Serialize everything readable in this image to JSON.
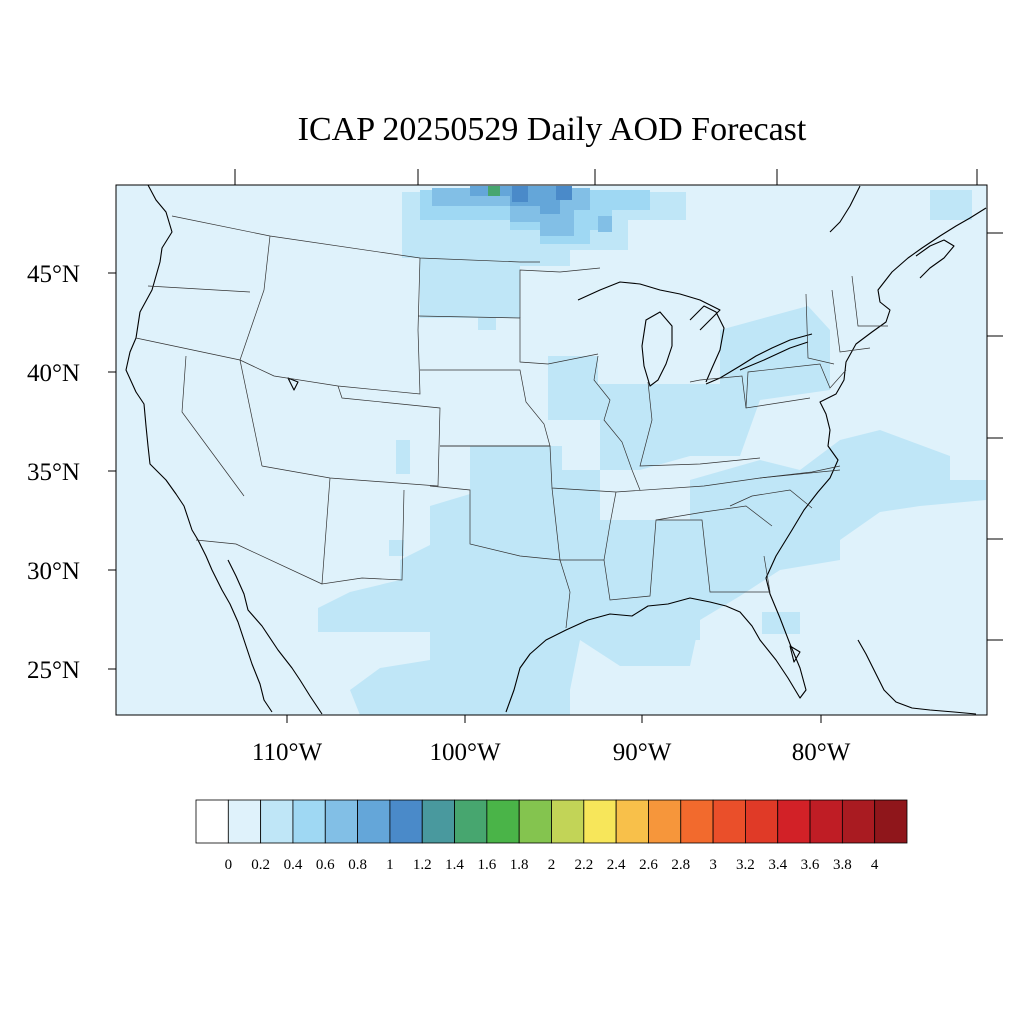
{
  "title": "ICAP 20250529 Daily AOD Forecast",
  "map": {
    "lat_labels": [
      "45°N",
      "40°N",
      "35°N",
      "30°N",
      "25°N"
    ],
    "lon_labels": [
      "110°W",
      "100°W",
      "90°W",
      "80°W"
    ],
    "background_level_color": "#dff2fb"
  },
  "colorbar": {
    "colors": [
      "#ffffff",
      "#dff2fb",
      "#bfe6f7",
      "#9fd8f3",
      "#82bfe6",
      "#64a6d9",
      "#4a8ac9",
      "#49999e",
      "#47a66f",
      "#4ab448",
      "#84c44f",
      "#c2d457",
      "#f7e65a",
      "#f8c04a",
      "#f6963b",
      "#f26a2d",
      "#ea4f2a",
      "#e03a27",
      "#d22127",
      "#bf1d25",
      "#a91b21",
      "#8f161b"
    ],
    "labels": [
      "0",
      "0.2",
      "0.4",
      "0.6",
      "0.8",
      "1",
      "1.2",
      "1.4",
      "1.6",
      "1.8",
      "2",
      "2.2",
      "2.4",
      "2.6",
      "2.8",
      "3",
      "3.2",
      "3.4",
      "3.6",
      "3.8",
      "4"
    ]
  }
}
